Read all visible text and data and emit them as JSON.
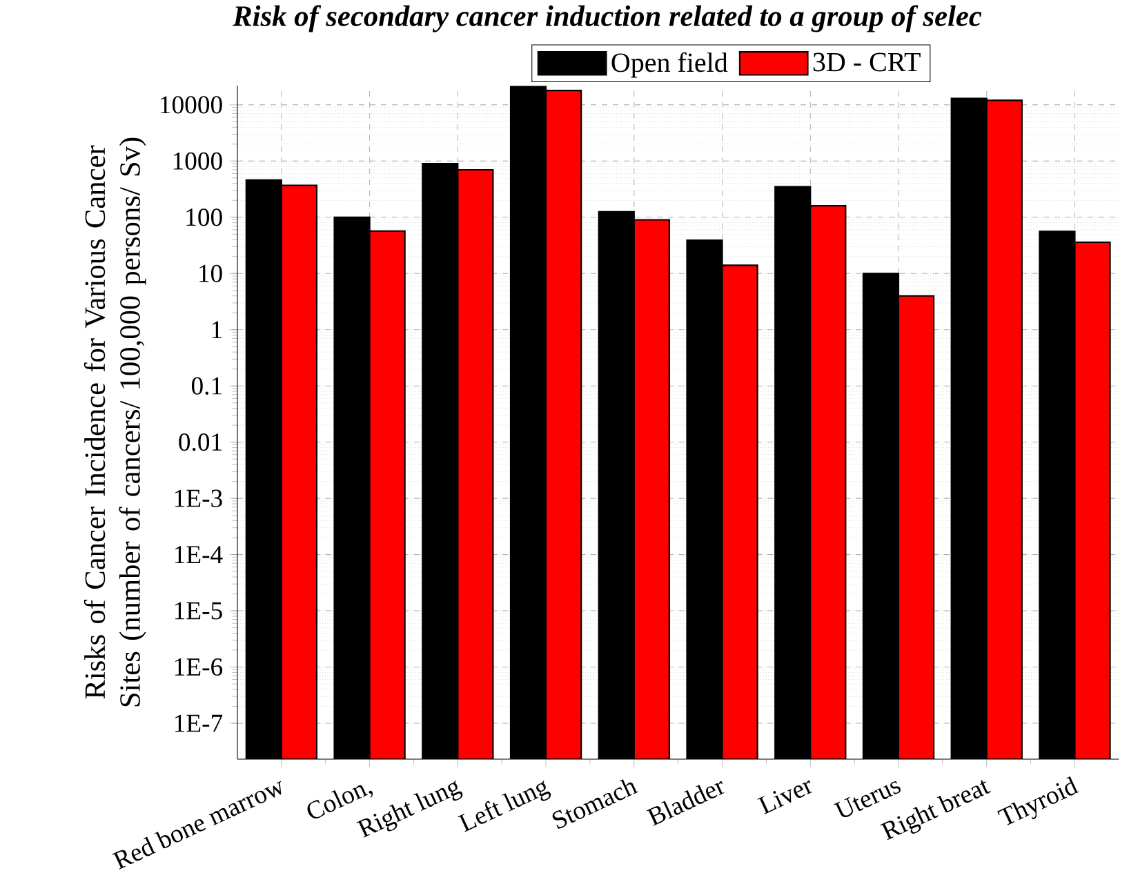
{
  "chart_data": {
    "type": "bar",
    "title": "Risk of secondary cancer induction related to a group of selec",
    "ylabel": "Risks of Cancer Incidence for Various Cancer Sites (number of cancers/ 100,000 persons/ Sv)",
    "categories": [
      "Red bone marrow",
      "Colon",
      "Right lung",
      "Left lung",
      "Stomach",
      "Bladder",
      "Liver",
      "Uterus",
      "Right breat",
      "Thyroid"
    ],
    "series": [
      {
        "name": "Open field",
        "color": "#000000",
        "values": [
          460,
          100,
          900,
          21000,
          125,
          39,
          350,
          10,
          13000,
          56
        ]
      },
      {
        "name": "3D - CRT",
        "color": "#ff0000",
        "values": [
          370,
          57,
          700,
          18000,
          90,
          14,
          160,
          4,
          12000,
          36
        ]
      }
    ],
    "log": true,
    "ylim": [
      2.3e-08,
      22000
    ],
    "yticks": [
      {
        "value": 1e-07,
        "label": "1E-7"
      },
      {
        "value": 1e-06,
        "label": "1E-6"
      },
      {
        "value": 1e-05,
        "label": "1E-5"
      },
      {
        "value": 0.0001,
        "label": "1E-4"
      },
      {
        "value": 0.001,
        "label": "1E-3"
      },
      0.01,
      0.1,
      1,
      10,
      100,
      1000,
      10000
    ],
    "grid": true,
    "legend": "top",
    "annotations": [
      ","
    ]
  }
}
